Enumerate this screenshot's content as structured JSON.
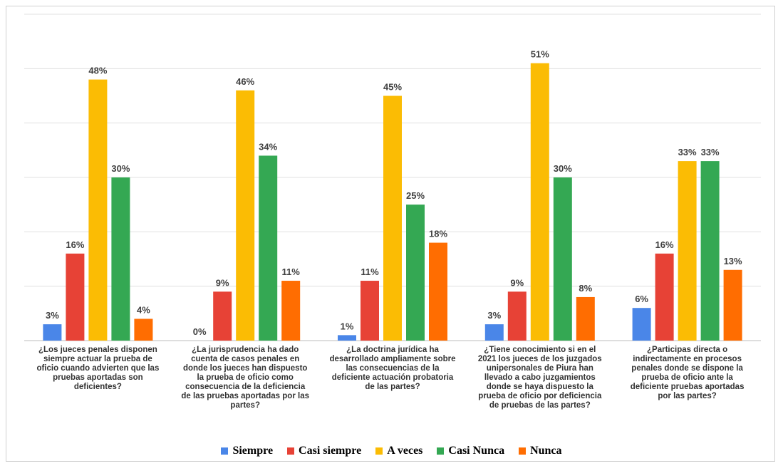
{
  "chart_data": {
    "type": "bar",
    "categories": [
      [
        "¿Los jueces penales disponen",
        "siempre actuar la prueba de",
        "oficio cuando advierten que las",
        "pruebas aportadas son",
        "deficientes?"
      ],
      [
        "¿La jurisprudencia ha dado",
        "cuenta de casos penales en",
        "donde los jueces han dispuesto",
        "la prueba de oficio como",
        "consecuencia de la deficiencia",
        "de las pruebas aportadas por las",
        "partes?"
      ],
      [
        "¿La doctrina jurídica ha",
        "desarrollado ampliamente sobre",
        "las consecuencias de la",
        "deficiente actuación probatoria",
        "de las partes?"
      ],
      [
        "¿Tiene conocimiento si en el",
        "2021 los jueces de los juzgados",
        "unipersonales de Piura han",
        "llevado a cabo juzgamientos",
        "donde se haya dispuesto la",
        "prueba de oficio por deficiencia",
        "de pruebas de las partes?"
      ],
      [
        "¿Participas directa o",
        "indirectamente en procesos",
        "penales donde se dispone la",
        "prueba de oficio ante la",
        "deficiente pruebas aportadas",
        "por las partes?"
      ]
    ],
    "series": [
      {
        "name": "Siempre",
        "color": "#4a86e8",
        "values": [
          3,
          0,
          1,
          3,
          6
        ]
      },
      {
        "name": "Casi siempre",
        "color": "#e74236",
        "values": [
          16,
          9,
          11,
          9,
          16
        ]
      },
      {
        "name": "A veces",
        "color": "#fbbc04",
        "values": [
          48,
          46,
          45,
          51,
          33
        ]
      },
      {
        "name": "Casi Nunca",
        "color": "#34a853",
        "values": [
          30,
          34,
          25,
          30,
          33
        ]
      },
      {
        "name": "Nunca",
        "color": "#ff6d01",
        "values": [
          4,
          11,
          18,
          8,
          13
        ]
      }
    ],
    "value_suffix": "%",
    "ylim": [
      0,
      60
    ],
    "grid": true,
    "legend_position": "bottom"
  }
}
